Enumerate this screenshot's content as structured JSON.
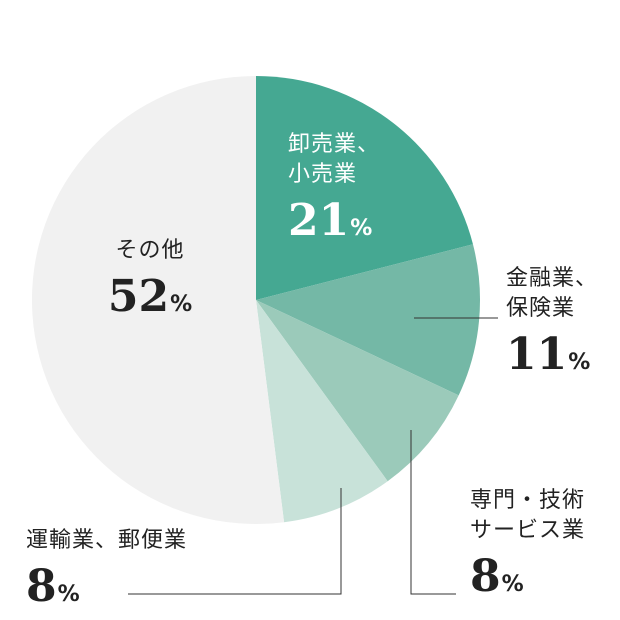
{
  "chart_data": {
    "type": "pie",
    "unit": "%",
    "slices": [
      {
        "name_lines": [
          "卸売業、",
          "小売業"
        ],
        "value": 21,
        "color": "#45a892"
      },
      {
        "name_lines": [
          "金融業、",
          "保険業"
        ],
        "value": 11,
        "color": "#74b8a6"
      },
      {
        "name_lines": [
          "専門・技術",
          "サービス業"
        ],
        "value": 8,
        "color": "#9bcaba"
      },
      {
        "name_lines": [
          "運輸業、郵便業"
        ],
        "value": 8,
        "color": "#c8e2d9"
      },
      {
        "name_lines": [
          "その他"
        ],
        "value": 52,
        "color": "#f1f1f1"
      }
    ],
    "leader_color": "#333333",
    "text_color_dark": "#222222",
    "text_color_light": "#ffffff"
  }
}
